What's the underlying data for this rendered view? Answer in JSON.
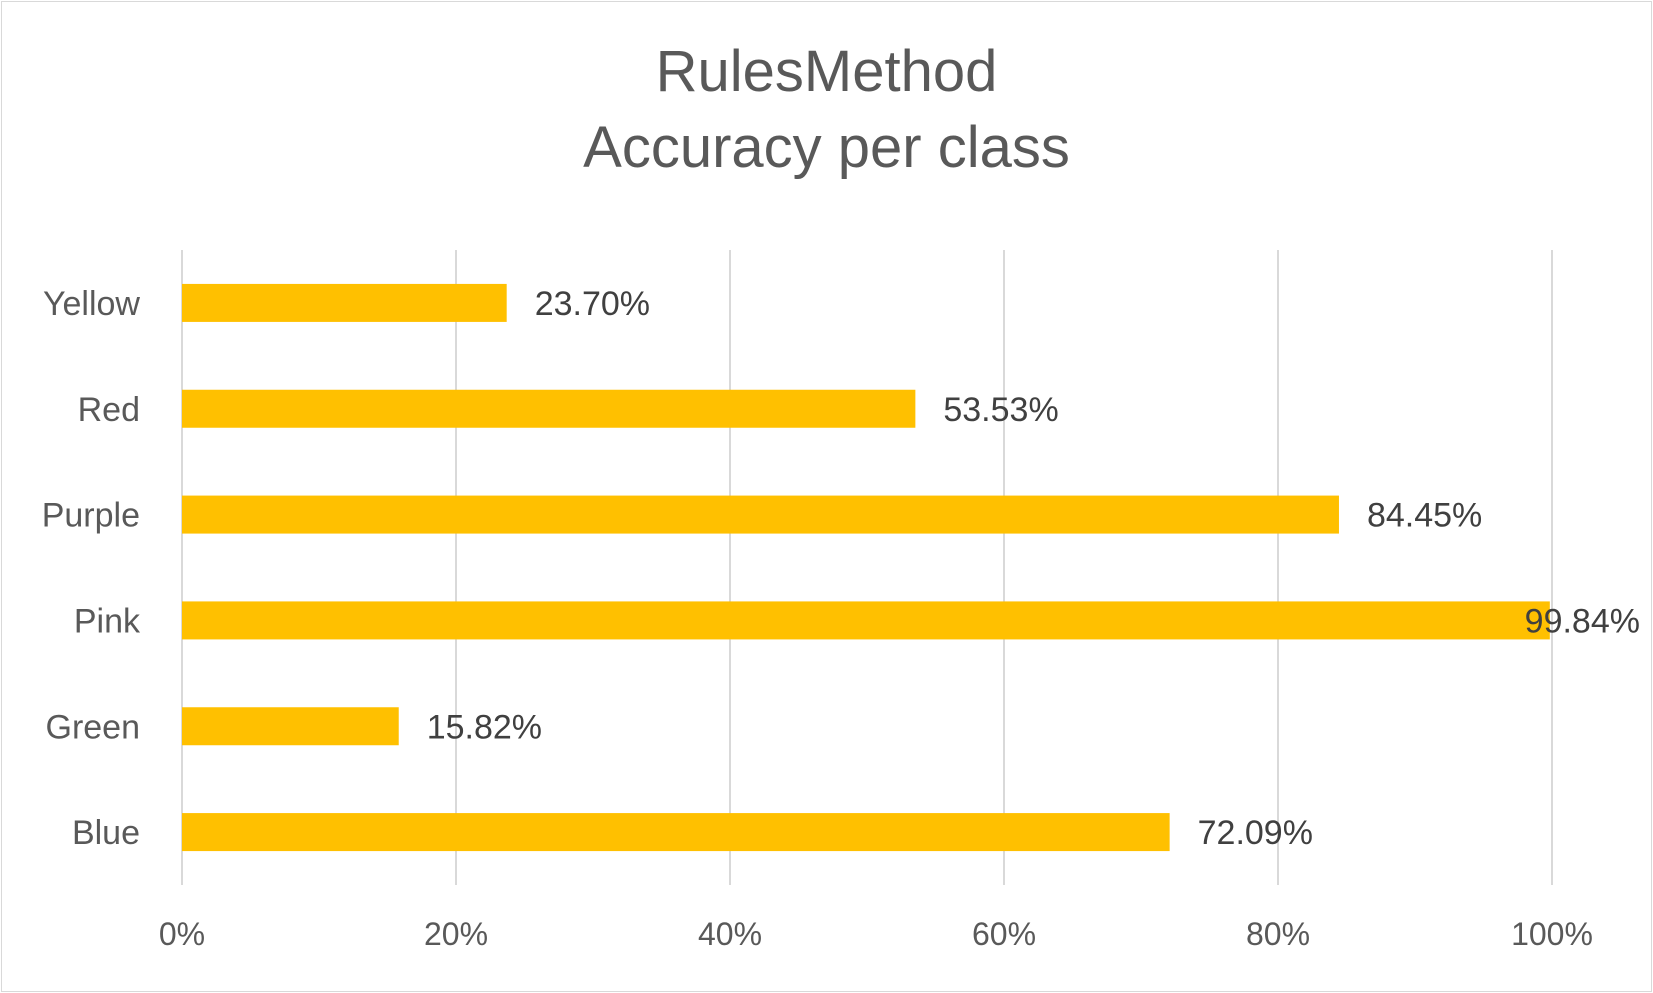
{
  "chart_data": {
    "type": "bar",
    "orientation": "horizontal",
    "title": "RulesMethod",
    "subtitle": "Accuracy per class",
    "xlabel": "",
    "ylabel": "",
    "categories": [
      "Blue",
      "Green",
      "Pink",
      "Purple",
      "Red",
      "Yellow"
    ],
    "values": [
      72.09,
      15.82,
      99.84,
      84.45,
      53.53,
      23.7
    ],
    "data_labels": [
      "72.09%",
      "15.82%",
      "99.84%",
      "84.45%",
      "53.53%",
      "23.70%"
    ],
    "x_ticks": [
      "0%",
      "20%",
      "40%",
      "60%",
      "80%",
      "100%"
    ],
    "xlim": [
      0,
      100
    ],
    "grid": "vertical",
    "legend": "none",
    "bar_color": "#ffc000",
    "grid_color": "#d9d9d9"
  }
}
